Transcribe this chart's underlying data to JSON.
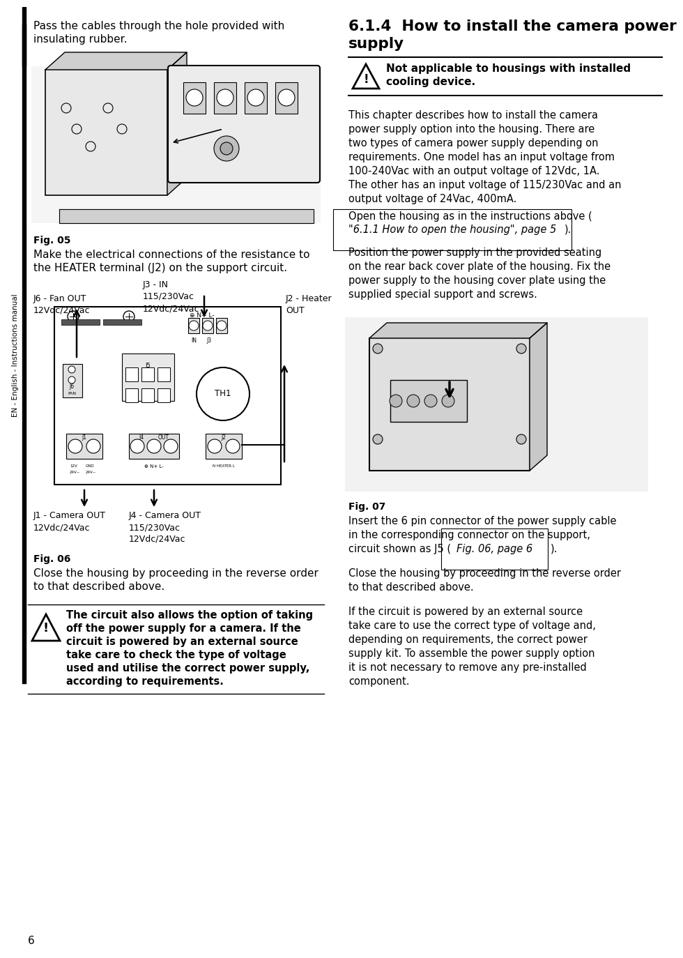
{
  "page_number": "6",
  "bg_color": "#ffffff",
  "left_column": {
    "sidebar_text": "EN - English - Instructions manual",
    "intro_line1": "Pass the cables through the hole provided with",
    "intro_line2": "insulating rubber.",
    "fig05_label": "Fig. 05",
    "circuit_line1": "Make the electrical connections of the resistance to",
    "circuit_line2": "the HEATER terminal (J2) on the support circuit.",
    "label_j6_1": "J6 - Fan OUT",
    "label_j6_2": "12Vdc/24Vac",
    "label_j3_1": "J3 - IN",
    "label_j3_2": "115/230Vac",
    "label_j3_3": "12Vdc/24Vac",
    "label_j2_1": "J2 - Heater",
    "label_j2_2": "OUT",
    "label_j1_1": "J1 - Camera OUT",
    "label_j1_2": "12Vdc/24Vac",
    "label_j4_1": "J4 - Camera OUT",
    "label_j4_2": "115/230Vac",
    "label_j4_3": "12Vdc/24Vac",
    "fig06_label": "Fig. 06",
    "close_line1": "Close the housing by proceeding in the reverse order",
    "close_line2": "to that described above.",
    "warn_line1": "The circuit also allows the option of taking",
    "warn_line2": "off the power supply for a camera. If the",
    "warn_line3": "circuit is powered by an external source",
    "warn_line4": "take care to check the type of voltage",
    "warn_line5": "used and utilise the correct power supply,",
    "warn_line6": "according to requirements."
  },
  "right_column": {
    "title_line1": "6.1.4  How to install the camera power",
    "title_line2": "supply",
    "warn_line1": "Not applicable to housings with installed",
    "warn_line2": "cooling device.",
    "p1_1": "This chapter describes how to install the camera",
    "p1_2": "power supply option into the housing. There are",
    "p1_3": "two types of camera power supply depending on",
    "p1_4": "requirements. One model has an input voltage from",
    "p1_5": "100-240Vac with an output voltage of 12Vdc, 1A.",
    "p1_6": "The other has an input voltage of 115/230Vac and an",
    "p1_7": "output voltage of 24Vac, 400mA.",
    "p2_pre": "Open the housing as in the instructions above (",
    "p2_link_1": "\"6.1.1 How to open the housing\", page 5",
    "p2_link_2": "",
    "p2_post": ").",
    "p3_1": "Position the power supply in the provided seating",
    "p3_2": "on the rear back cover plate of the housing. Fix the",
    "p3_3": "power supply to the housing cover plate using the",
    "p3_4": "supplied special support and screws.",
    "fig07_label": "Fig. 07",
    "p4_1": "Insert the 6 pin connector of the power supply cable",
    "p4_2": "in the corresponding connector on the support,",
    "p4_3_pre": "circuit shown as J5 (",
    "p4_3_link": "Fig. 06, page 6",
    "p4_3_post": ").",
    "p5_1": "Close the housing by proceeding in the reverse order",
    "p5_2": "to that described above.",
    "p6_1": "If the circuit is powered by an external source",
    "p6_2": "take care to use the correct type of voltage and,",
    "p6_3": "depending on requirements, the correct power",
    "p6_4": "supply kit. To assemble the power supply option",
    "p6_5": "it is not necessary to remove any pre-installed",
    "p6_6": "component."
  }
}
